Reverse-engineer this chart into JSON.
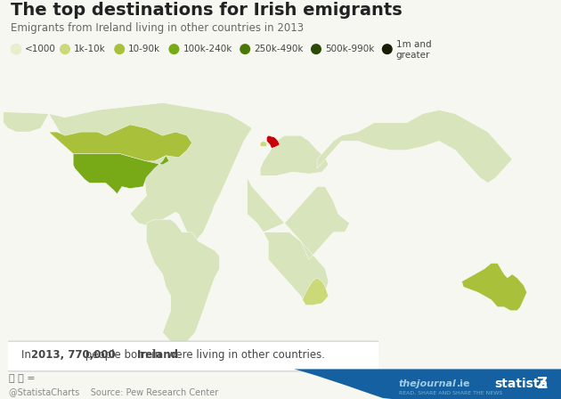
{
  "title": "The top destinations for Irish emigrants",
  "subtitle": "Emigrants from Ireland living in other countries in 2013",
  "footnote_parts": [
    {
      "text": "In ",
      "bold": false
    },
    {
      "text": "2013, 770,000",
      "bold": true
    },
    {
      "text": " people born in ",
      "bold": false
    },
    {
      "text": "Ireland",
      "bold": true
    },
    {
      "text": " were living in other countries.",
      "bold": false
    }
  ],
  "source": "Source: Pew Research Center",
  "attribution": "@StatistaCharts",
  "background_color": "#f7f7f2",
  "ocean_color": "#ffffff",
  "border_color": "#ffffff",
  "legend_labels": [
    "<1000",
    "1k-10k",
    "10-90k",
    "100k-240k",
    "250k-490k",
    "500k-990k",
    "1m and\ngreater"
  ],
  "legend_colors": [
    "#e8edcc",
    "#ccd978",
    "#a8c03a",
    "#78aa18",
    "#4a7808",
    "#2a4a08",
    "#181e04"
  ],
  "country_colors": {
    "United Kingdom": "#c8000a",
    "United States of America": "#78aa18",
    "Canada": "#a8c03a",
    "Australia": "#a8c03a",
    "Germany": "#ccd978",
    "France": "#ccd978",
    "Spain": "#ccd978",
    "New Zealand": "#ccd978",
    "Argentina": "#ccd978",
    "South Africa": "#ccd978",
    "Ireland": "#ccd978"
  },
  "default_land_color": "#d8e4bb",
  "footer_blue": "#1560a0",
  "title_color": "#222222",
  "subtitle_color": "#666666",
  "note_text_color": "#444444"
}
